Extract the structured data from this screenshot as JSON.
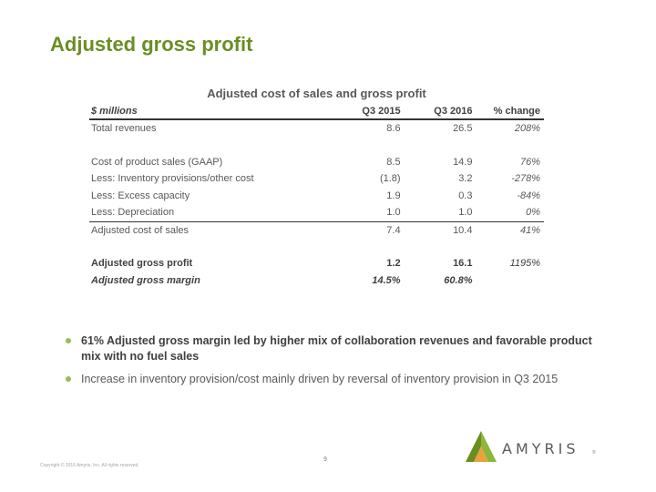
{
  "slide": {
    "title": "Adjusted gross profit"
  },
  "table": {
    "title": "Adjusted cost of sales and gross profit",
    "headers": [
      "$ millions",
      "Q3 2015",
      "Q3 2016",
      "% change"
    ],
    "rows": [
      {
        "label": "Total revenues",
        "q3_2015": "8.6",
        "q3_2016": "26.5",
        "change": "208%"
      },
      {
        "label": "Cost of product sales (GAAP)",
        "q3_2015": "8.5",
        "q3_2016": "14.9",
        "change": "76%"
      },
      {
        "label": "Less: Inventory provisions/other cost",
        "q3_2015": "(1.8)",
        "q3_2016": "3.2",
        "change": "-278%"
      },
      {
        "label": "Less: Excess capacity",
        "q3_2015": "1.9",
        "q3_2016": "0.3",
        "change": "-84%"
      },
      {
        "label": "Less: Depreciation",
        "q3_2015": "1.0",
        "q3_2016": "1.0",
        "change": "0%"
      },
      {
        "label": "Adjusted cost of sales",
        "q3_2015": "7.4",
        "q3_2016": "10.4",
        "change": "41%"
      },
      {
        "label": "Adjusted gross profit",
        "q3_2015": "1.2",
        "q3_2016": "16.1",
        "change": "1195%"
      },
      {
        "label": "Adjusted gross margin",
        "q3_2015": "14.5%",
        "q3_2016": "60.8%",
        "change": ""
      }
    ]
  },
  "bullets": [
    "61% Adjusted gross margin led by higher mix of collaboration revenues and favorable product mix with no fuel sales",
    "Increase in inventory provision/cost mainly driven by reversal of inventory provision in Q3 2015"
  ],
  "footer": {
    "copyright": "Copyright © 2016 Amyris, Inc. All rights reserved.",
    "page_number": "9"
  },
  "logo": {
    "text": "AMYRIS",
    "reg": "®"
  },
  "colors": {
    "title": "#6b8e23",
    "bullet": "#9bbb59",
    "logo_green": "#8cb63c",
    "logo_orange": "#e8a33d"
  }
}
